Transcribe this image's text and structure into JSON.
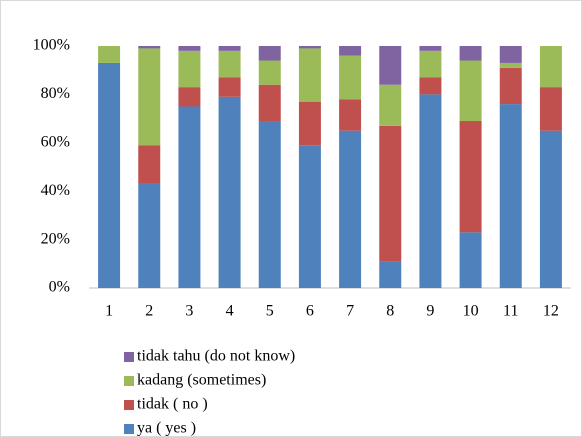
{
  "chart_data": {
    "type": "bar",
    "stacked": true,
    "categories": [
      "1",
      "2",
      "3",
      "4",
      "5",
      "6",
      "7",
      "8",
      "9",
      "10",
      "11",
      "12"
    ],
    "series": [
      {
        "name": "ya ( yes )",
        "color": "#4f81bd",
        "values": [
          93,
          43,
          75,
          79,
          69,
          59,
          65,
          11,
          80,
          23,
          76,
          65
        ]
      },
      {
        "name": "tidak ( no )",
        "color": "#c0504d",
        "values": [
          0,
          16,
          8,
          8,
          15,
          18,
          13,
          56,
          7,
          46,
          15,
          18
        ]
      },
      {
        "name": "kadang (sometimes)",
        "color": "#9bbb59",
        "values": [
          7,
          40,
          15,
          11,
          10,
          22,
          18,
          17,
          11,
          25,
          2,
          17
        ]
      },
      {
        "name": "tidak tahu  (do not know)",
        "color": "#8064a2",
        "values": [
          0,
          1,
          2,
          2,
          6,
          1,
          4,
          16,
          2,
          6,
          7,
          0
        ]
      }
    ],
    "ylim": [
      0,
      100
    ],
    "yticks": [
      {
        "value": 0,
        "label": "0%"
      },
      {
        "value": 20,
        "label": "20%"
      },
      {
        "value": 40,
        "label": "40%"
      },
      {
        "value": 60,
        "label": "60%"
      },
      {
        "value": 80,
        "label": "80%"
      },
      {
        "value": 100,
        "label": "100%"
      }
    ],
    "legend": "bottom"
  }
}
